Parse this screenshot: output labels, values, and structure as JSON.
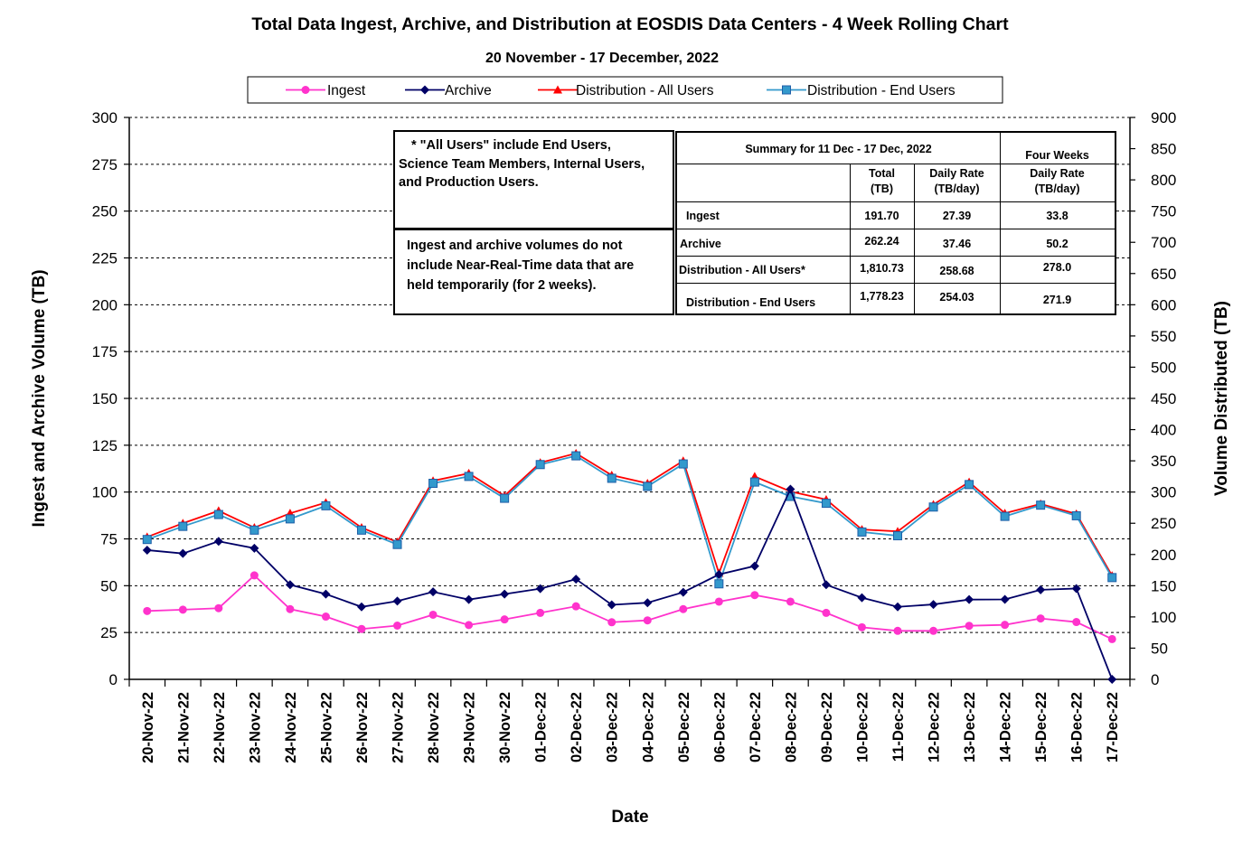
{
  "chart_data": {
    "type": "line",
    "title": "Total Data Ingest, Archive, and  Distribution at EOSDIS Data Centers - 4 Week Rolling Chart",
    "subtitle": "20  November   - 17  December,  2022",
    "xlabel": "Date",
    "ylabel_left": "Ingest and Archive Volume (TB)",
    "ylabel_right": "Volume Distributed (TB)",
    "ylim_left": [
      0,
      300
    ],
    "ylim_right": [
      0,
      900
    ],
    "yticks_left": [
      0,
      25,
      50,
      75,
      100,
      125,
      150,
      175,
      200,
      225,
      250,
      275,
      300
    ],
    "yticks_right": [
      0,
      50,
      100,
      150,
      200,
      250,
      300,
      350,
      400,
      450,
      500,
      550,
      600,
      650,
      700,
      750,
      800,
      850,
      900
    ],
    "legend_position": "top",
    "grid": "dashed horizontal",
    "categories": [
      "20-Nov-22",
      "21-Nov-22",
      "22-Nov-22",
      "23-Nov-22",
      "24-Nov-22",
      "25-Nov-22",
      "26-Nov-22",
      "27-Nov-22",
      "28-Nov-22",
      "29-Nov-22",
      "30-Nov-22",
      "01-Dec-22",
      "02-Dec-22",
      "03-Dec-22",
      "04-Dec-22",
      "05-Dec-22",
      "06-Dec-22",
      "07-Dec-22",
      "08-Dec-22",
      "09-Dec-22",
      "10-Dec-22",
      "11-Dec-22",
      "12-Dec-22",
      "13-Dec-22",
      "14-Dec-22",
      "15-Dec-22",
      "16-Dec-22",
      "17-Dec-22"
    ],
    "series": [
      {
        "name": "Ingest",
        "axis": "left",
        "color": "#ff33cc",
        "marker": "circle",
        "values": [
          36.5,
          37.2,
          38,
          55.5,
          37.5,
          33.5,
          26.9,
          28.7,
          34.5,
          29,
          32,
          35.5,
          39,
          30.5,
          31.5,
          37.5,
          41.5,
          45,
          41.5,
          35.5,
          27.8,
          25.9,
          25.9,
          28.6,
          29.1,
          32.5,
          30.6,
          21.5
        ]
      },
      {
        "name": "Archive",
        "axis": "left",
        "color": "#000066",
        "marker": "diamond",
        "values": [
          69,
          67.2,
          73.7,
          70,
          50.5,
          45.5,
          38.7,
          41.8,
          46.7,
          42.6,
          45.5,
          48.4,
          53.5,
          39.8,
          40.9,
          46.5,
          56,
          60.5,
          101.5,
          50.5,
          43.6,
          38.7,
          40,
          42.6,
          42.7,
          47.8,
          48.5,
          0
        ]
      },
      {
        "name": "Distribution - All Users",
        "axis": "right",
        "color": "#ff0000",
        "marker": "triangle",
        "values": [
          228,
          250,
          270,
          243,
          266,
          283,
          243,
          220,
          318,
          330,
          294,
          347,
          362,
          327,
          314,
          350,
          170,
          325,
          301,
          288,
          240,
          237,
          280,
          316,
          266,
          281,
          265,
          166
        ]
      },
      {
        "name": "Distribution - End Users",
        "axis": "right",
        "color": "#3399cc",
        "marker": "square",
        "values": [
          224,
          245,
          264,
          239,
          257,
          278,
          239,
          216,
          314,
          325,
          290,
          344,
          358,
          322,
          309,
          345,
          153,
          316,
          293,
          282,
          236,
          230,
          276,
          312,
          261,
          279,
          262,
          163
        ]
      }
    ]
  },
  "notes": {
    "note1": [
      "* \"All Users\" include End Users,",
      "Science Team Members,  Internal Users,",
      "and Production Users."
    ],
    "note2": [
      "Ingest and archive volumes do not",
      "include Near-Real-Time data that are",
      "held temporarily (for 2 weeks)."
    ]
  },
  "summary": {
    "title": "Summary  for  11  Dec   -  17  Dec,  2022",
    "four_weeks": "Four Weeks",
    "col_total": [
      "Total",
      "(TB)"
    ],
    "col_daily": [
      "Daily Rate",
      "(TB/day)"
    ],
    "col_four": [
      "Daily Rate",
      "(TB/day)"
    ],
    "rows": [
      {
        "label": "Ingest",
        "total": "191.70",
        "daily": "27.39",
        "four": "33.8"
      },
      {
        "label": "Archive",
        "total": "262.24",
        "daily": "37.46",
        "four": "50.2"
      },
      {
        "label": "Distribution - All Users*",
        "total": "1,810.73",
        "daily": "258.68",
        "four": "278.0"
      },
      {
        "label": "Distribution - End Users",
        "total": "1,778.23",
        "daily": "254.03",
        "four": "271.9"
      }
    ]
  }
}
